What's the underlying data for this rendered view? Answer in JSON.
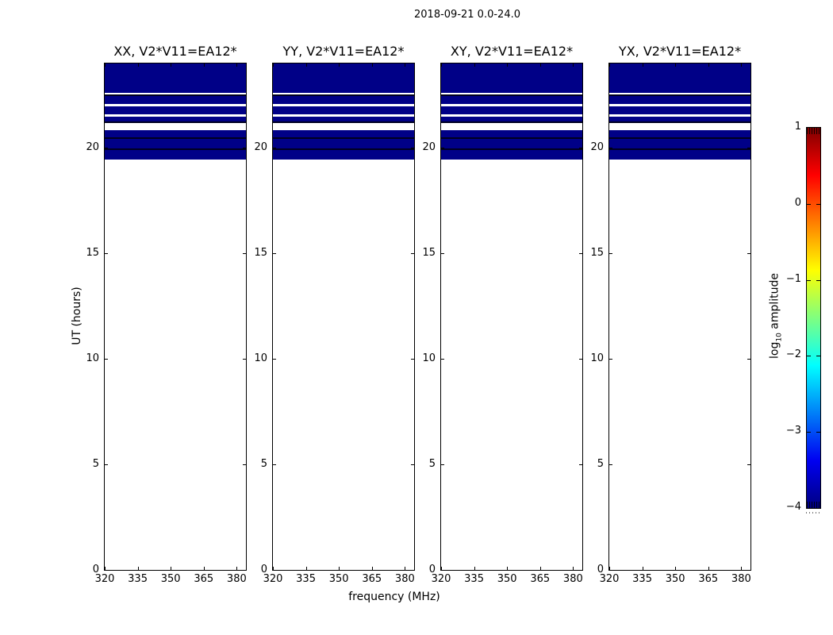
{
  "figure": {
    "suptitle": "2018-09-21 0.0-24.0"
  },
  "axes_labels": {
    "x": "frequency (MHz)",
    "y": "UT (hours)"
  },
  "colorbar": {
    "label_prefix": "log",
    "label_sub": "10",
    "label_rest": " amplitude",
    "colormap": "jet",
    "range": [
      -4,
      1
    ],
    "tick_values": [
      1,
      0,
      -1,
      -2,
      -3,
      -4
    ],
    "tick_labels": [
      "1",
      "0",
      "−1",
      "−2",
      "−3",
      "−4"
    ],
    "gradient_colors_bottom_to_top": [
      "#000080",
      "#0000f1",
      "#00ffff",
      "#ffff00",
      "#ff0000",
      "#800000"
    ]
  },
  "chart_data": {
    "type": "heatmap",
    "title": "2018-09-21 0.0-24.0",
    "xlabel": "frequency (MHz)",
    "ylabel": "UT (hours)",
    "x_range": [
      320,
      384.2
    ],
    "y_range": [
      0,
      24
    ],
    "x_ticks": [
      320,
      335,
      350,
      365,
      380
    ],
    "y_ticks": [
      0,
      5,
      10,
      15,
      20
    ],
    "grid": false,
    "panels": [
      {
        "title": "XX, V2*V11=EA12*"
      },
      {
        "title": "YY, V2*V11=EA12*"
      },
      {
        "title": "XY, V2*V11=EA12*"
      },
      {
        "title": "YX, V2*V11=EA12*"
      }
    ],
    "band_note": "identical emission band in all four panels, log10 amplitude ~ -4 (navy) spanning full frequency range",
    "band_rows": [
      {
        "type": "data",
        "from_hour": 24.0,
        "to_hour": 22.61
      },
      {
        "type": "gap",
        "from_hour": 22.61,
        "to_hour": 22.53
      },
      {
        "type": "dark",
        "from_hour": 22.53,
        "to_hour": 22.46
      },
      {
        "type": "data",
        "from_hour": 22.46,
        "to_hour": 22.08
      },
      {
        "type": "gap",
        "from_hour": 22.08,
        "to_hour": 21.97
      },
      {
        "type": "data",
        "from_hour": 21.97,
        "to_hour": 21.6
      },
      {
        "type": "gap",
        "from_hour": 21.6,
        "to_hour": 21.48
      },
      {
        "type": "data",
        "from_hour": 21.48,
        "to_hour": 21.26
      },
      {
        "type": "dark",
        "from_hour": 21.26,
        "to_hour": 21.18
      },
      {
        "type": "gap",
        "from_hour": 21.18,
        "to_hour": 20.85
      },
      {
        "type": "data",
        "from_hour": 20.85,
        "to_hour": 20.51
      },
      {
        "type": "dark",
        "from_hour": 20.51,
        "to_hour": 20.43
      },
      {
        "type": "data",
        "from_hour": 20.43,
        "to_hour": 19.98
      },
      {
        "type": "dark",
        "from_hour": 19.98,
        "to_hour": 19.91
      },
      {
        "type": "data",
        "from_hour": 19.91,
        "to_hour": 19.45
      }
    ],
    "colors": {
      "data": "#000087",
      "dark": "#000020",
      "gap": "#ffffff"
    }
  }
}
